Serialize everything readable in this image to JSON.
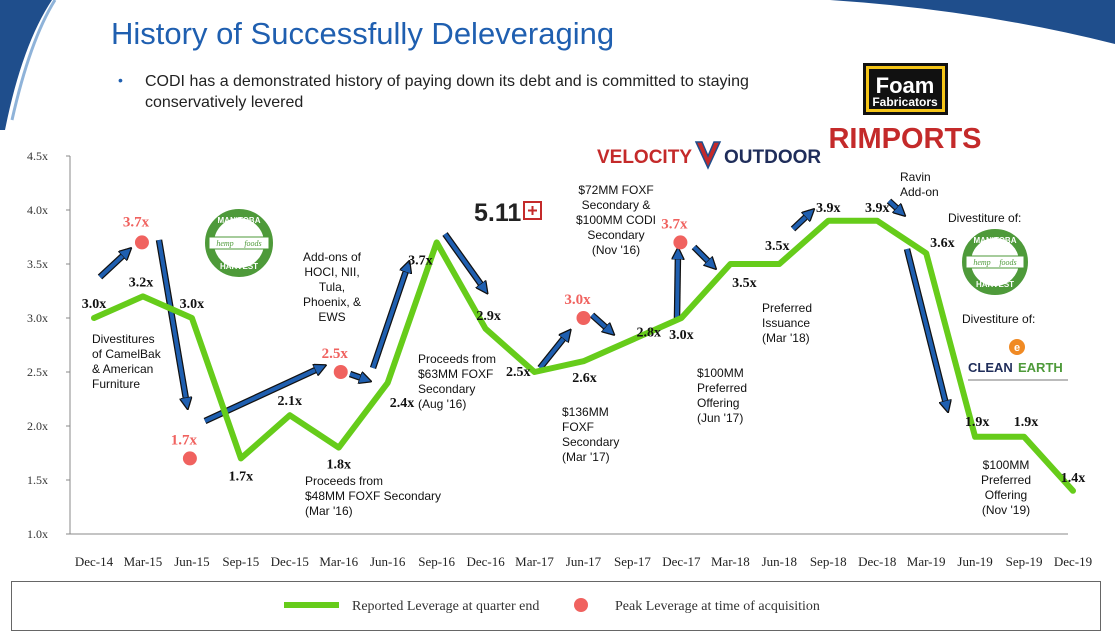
{
  "title": "History of Successfully Deleveraging",
  "bullet": "CODI has a demonstrated history of paying down its debt and is committed to staying conservatively levered",
  "colors": {
    "title": "#1f5fb0",
    "line": "#66cc1a",
    "peak": "#f0625f",
    "arrow": "#1f5fb0",
    "swoosh": "#1f4e8c"
  },
  "logos": {
    "foam": [
      "Foam",
      "Fabricators"
    ],
    "rimports": "RIMPORTS",
    "velocity": [
      "VELOCITY",
      "OUTDOOR"
    ],
    "five11": "5.11",
    "manitoba": [
      "MANITOBA",
      "HARVEST",
      "hemp",
      "foods"
    ],
    "cleanearth": [
      "CLEAN",
      "EARTH"
    ]
  },
  "chart_data": {
    "type": "line",
    "categories": [
      "Dec-14",
      "Mar-15",
      "Jun-15",
      "Sep-15",
      "Dec-15",
      "Mar-16",
      "Jun-16",
      "Sep-16",
      "Dec-16",
      "Mar-17",
      "Jun-17",
      "Sep-17",
      "Dec-17",
      "Mar-18",
      "Jun-18",
      "Sep-18",
      "Dec-18",
      "Mar-19",
      "Jun-19",
      "Sep-19",
      "Dec-19"
    ],
    "series": [
      {
        "name": "Reported Leverage at quarter end",
        "values": [
          3.0,
          3.2,
          3.0,
          1.7,
          2.1,
          1.8,
          2.4,
          3.7,
          2.9,
          2.5,
          2.6,
          2.8,
          3.0,
          3.5,
          3.5,
          3.9,
          3.9,
          3.6,
          1.9,
          1.9,
          1.4
        ]
      }
    ],
    "value_labels": [
      "3.0x",
      "3.2x",
      "3.0x",
      "1.7x",
      "2.1x",
      "1.8x",
      "2.4x",
      "3.7x",
      "2.9x",
      "2.5x",
      "2.6x",
      "2.8x",
      "3.0x",
      "3.5x",
      "3.5x",
      "3.9x",
      "3.9x",
      "3.6x",
      "1.9x",
      "1.9x",
      "1.4x"
    ],
    "peaks": {
      "name": "Peak Leverage at time of acquisition",
      "points": [
        {
          "x": "Mar-15",
          "y": 3.7,
          "label": "3.7x"
        },
        {
          "x": "Jun-15",
          "y": 1.7,
          "label": "1.7x"
        },
        {
          "x": "Mar-16",
          "y": 2.5,
          "label": "2.5x"
        },
        {
          "x": "Jun-17",
          "y": 3.0,
          "label": "3.0x"
        },
        {
          "x": "Dec-17",
          "y": 3.7,
          "label": "3.7x"
        }
      ]
    },
    "y_ticks": [
      "1.0x",
      "1.5x",
      "2.0x",
      "2.5x",
      "3.0x",
      "3.5x",
      "4.0x",
      "4.5x"
    ],
    "ylim": [
      1.0,
      4.5
    ],
    "annotations": [
      {
        "lines": [
          "Divestitures",
          "of CamelBak",
          "& American",
          "Furniture"
        ]
      },
      {
        "lines": [
          "Add-ons of",
          "HOCI, NII,",
          "Tula,",
          "Phoenix, &",
          "EWS"
        ]
      },
      {
        "lines": [
          "Proceeds from",
          "$48MM FOXF Secondary",
          "(Mar '16)"
        ]
      },
      {
        "lines": [
          "Proceeds from",
          "$63MM FOXF",
          "Secondary",
          "(Aug '16)"
        ]
      },
      {
        "lines": [
          "$72MM FOXF",
          "Secondary &",
          "$100MM CODI",
          "Secondary",
          "(Nov '16)"
        ]
      },
      {
        "lines": [
          "$136MM",
          "FOXF",
          "Secondary",
          "(Mar '17)"
        ]
      },
      {
        "lines": [
          "$100MM",
          "Preferred",
          "Offering",
          "(Jun '17)"
        ]
      },
      {
        "lines": [
          "Preferred",
          "Issuance",
          "(Mar '18)"
        ]
      },
      {
        "lines": [
          "Ravin",
          "Add-on"
        ]
      },
      {
        "lines": [
          "Divestiture of:"
        ]
      },
      {
        "lines": [
          "Divestiture of:"
        ]
      },
      {
        "lines": [
          "$100MM",
          "Preferred",
          "Offering",
          "(Nov '19)"
        ]
      }
    ],
    "legend": {
      "line_label": "Reported Leverage at quarter end",
      "dot_label": "Peak Leverage at time of acquisition",
      "placement": "bottom"
    },
    "grid": false
  }
}
